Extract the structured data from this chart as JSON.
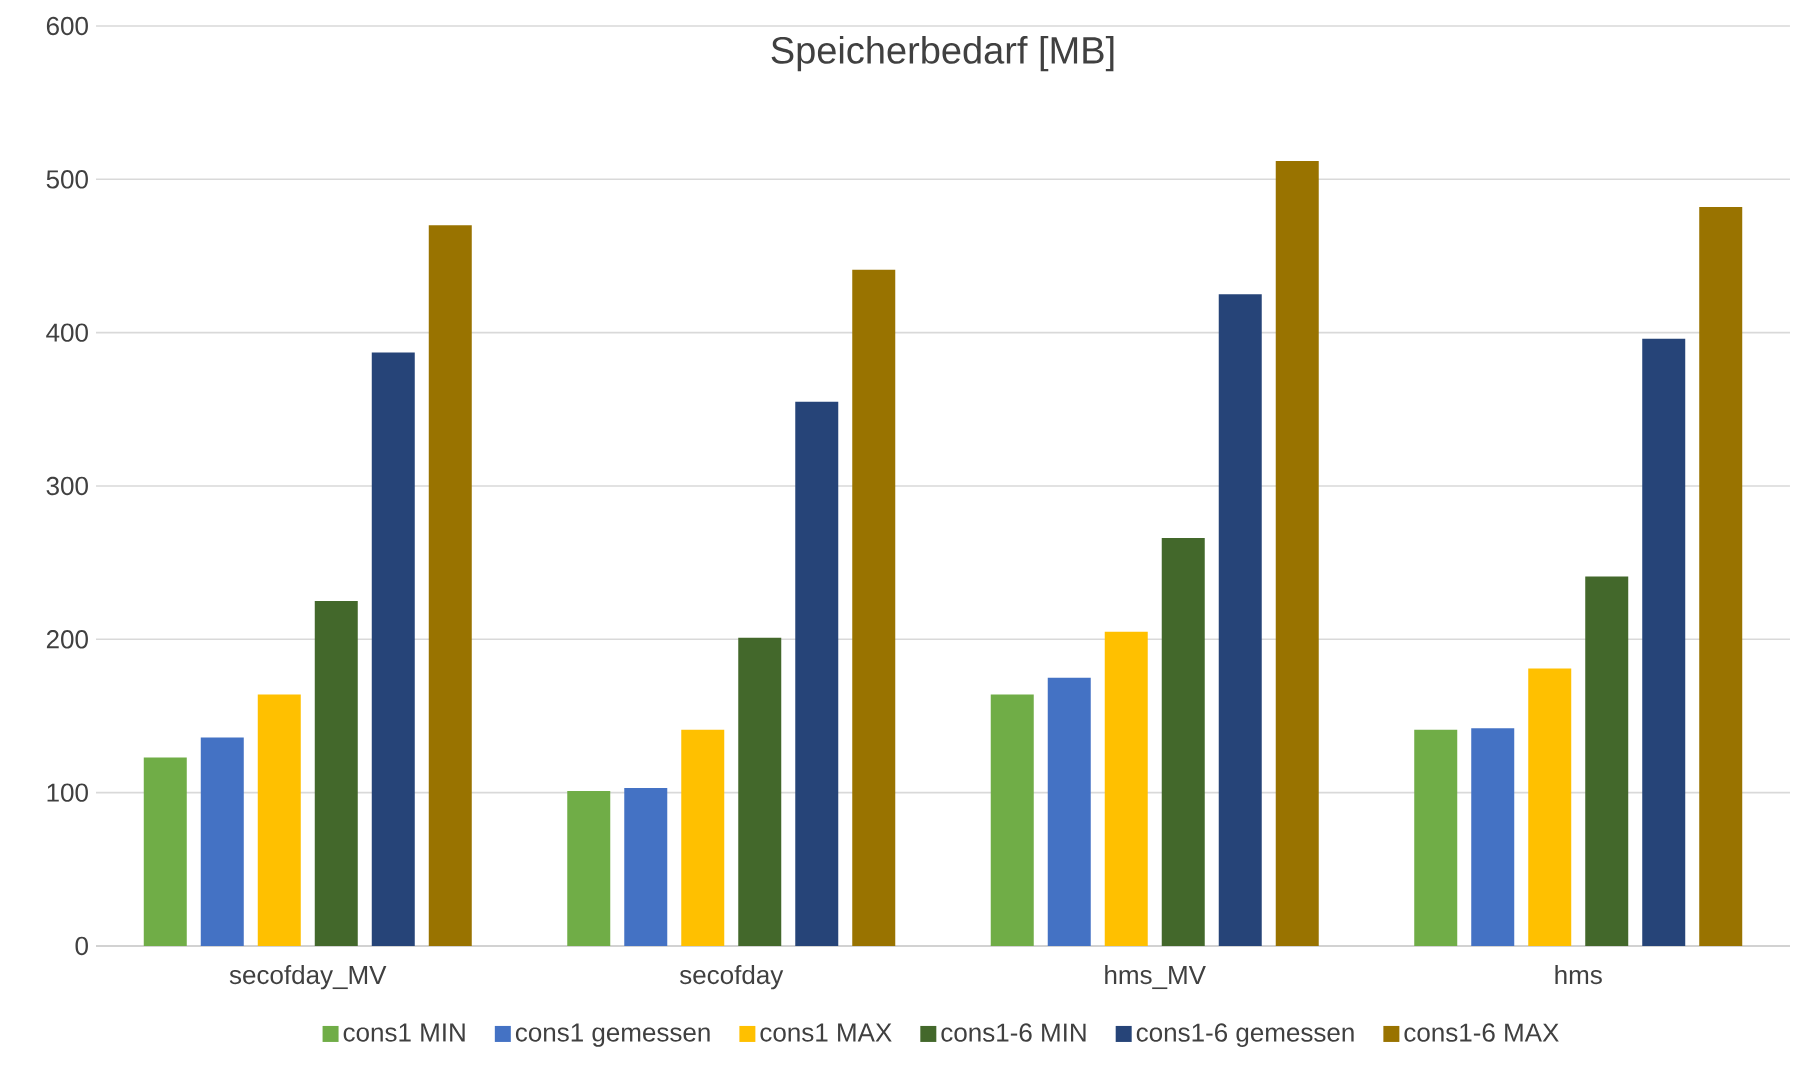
{
  "chart_data": {
    "type": "bar",
    "title": "Speicherbedarf [MB]",
    "categories": [
      "secofday_MV",
      "secofday",
      "hms_MV",
      "hms"
    ],
    "series": [
      {
        "name": "cons1 MIN",
        "color": "#70ad47",
        "values": [
          123,
          101,
          164,
          141
        ]
      },
      {
        "name": "cons1 gemessen",
        "color": "#4472c4",
        "values": [
          136,
          103,
          175,
          142
        ]
      },
      {
        "name": "cons1 MAX",
        "color": "#ffc000",
        "values": [
          164,
          141,
          205,
          181
        ]
      },
      {
        "name": "cons1-6 MIN",
        "color": "#43682b",
        "values": [
          225,
          201,
          266,
          241
        ]
      },
      {
        "name": "cons1-6 gemessen",
        "color": "#264478",
        "values": [
          387,
          355,
          425,
          396
        ]
      },
      {
        "name": "cons1-6 MAX",
        "color": "#997300",
        "values": [
          470,
          441,
          512,
          482
        ]
      }
    ],
    "ylim": [
      0,
      600
    ],
    "yticks": [
      0,
      100,
      200,
      300,
      400,
      500,
      600
    ],
    "grid": "y",
    "legend": "bottom"
  }
}
